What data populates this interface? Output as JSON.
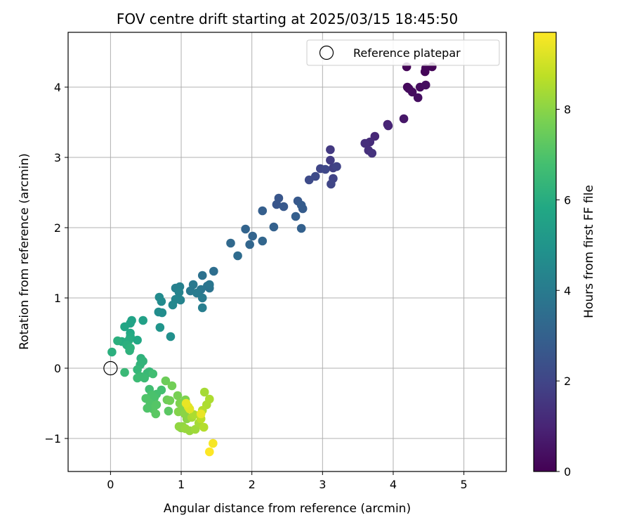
{
  "chart_data": {
    "type": "scatter",
    "title": "FOV centre drift starting at 2025/03/15 18:45:50",
    "xlabel": "Angular distance from reference (arcmin)",
    "ylabel": "Rotation from reference (arcmin)",
    "xlim": [
      -0.6,
      5.6
    ],
    "ylim": [
      -1.47,
      4.78
    ],
    "xticks": [
      0,
      1,
      2,
      3,
      4,
      5
    ],
    "xtick_labels": [
      "0",
      "1",
      "2",
      "3",
      "4",
      "5"
    ],
    "yticks": [
      -1,
      0,
      1,
      2,
      3,
      4
    ],
    "ytick_labels": [
      "−1",
      "0",
      "1",
      "2",
      "3",
      "4"
    ],
    "grid": true,
    "legend": {
      "placement": "top-right",
      "entries": [
        "Reference platepar"
      ]
    },
    "reference_point": {
      "x": 0,
      "y": 0
    },
    "colorbar": {
      "label": "Hours from first FF file",
      "colormap": "viridis",
      "range": [
        0,
        9.7
      ],
      "ticks": [
        0,
        2,
        4,
        6,
        8
      ],
      "tick_labels": [
        "0",
        "2",
        "4",
        "6",
        "8"
      ]
    },
    "points": [
      [
        4.19,
        4.29,
        0.1
      ],
      [
        4.45,
        4.22,
        0.1
      ],
      [
        4.46,
        4.27,
        0.15
      ],
      [
        4.55,
        4.29,
        0.1
      ],
      [
        4.2,
        4.0,
        0.2
      ],
      [
        4.22,
        3.98,
        0.25
      ],
      [
        4.27,
        3.93,
        0.3
      ],
      [
        4.35,
        3.85,
        0.35
      ],
      [
        4.38,
        4.0,
        0.3
      ],
      [
        4.46,
        4.03,
        0.35
      ],
      [
        4.15,
        3.55,
        0.6
      ],
      [
        3.92,
        3.47,
        0.9
      ],
      [
        3.93,
        3.45,
        1.0
      ],
      [
        3.74,
        3.3,
        1.1
      ],
      [
        3.67,
        3.22,
        1.2
      ],
      [
        3.6,
        3.2,
        1.3
      ],
      [
        3.65,
        3.1,
        1.3
      ],
      [
        3.7,
        3.06,
        1.4
      ],
      [
        3.11,
        3.11,
        1.6
      ],
      [
        3.11,
        2.96,
        1.7
      ],
      [
        3.15,
        2.85,
        1.8
      ],
      [
        3.2,
        2.87,
        1.9
      ],
      [
        3.15,
        2.7,
        1.9
      ],
      [
        3.12,
        2.62,
        2.0
      ],
      [
        2.97,
        2.84,
        2.0
      ],
      [
        3.04,
        2.83,
        2.1
      ],
      [
        2.9,
        2.73,
        2.2
      ],
      [
        2.81,
        2.68,
        2.2
      ],
      [
        2.38,
        2.42,
        2.6
      ],
      [
        2.35,
        2.33,
        2.6
      ],
      [
        2.45,
        2.3,
        2.7
      ],
      [
        2.65,
        2.38,
        2.7
      ],
      [
        2.7,
        2.32,
        2.8
      ],
      [
        2.72,
        2.27,
        2.8
      ],
      [
        2.62,
        2.16,
        2.9
      ],
      [
        2.15,
        2.24,
        2.9
      ],
      [
        2.31,
        2.01,
        3.0
      ],
      [
        2.7,
        1.99,
        3.0
      ],
      [
        1.91,
        1.98,
        3.1
      ],
      [
        2.01,
        1.88,
        3.1
      ],
      [
        1.97,
        1.76,
        3.2
      ],
      [
        2.15,
        1.81,
        3.2
      ],
      [
        1.7,
        1.78,
        3.3
      ],
      [
        1.8,
        1.6,
        3.4
      ],
      [
        1.46,
        1.38,
        3.5
      ],
      [
        1.3,
        1.32,
        3.6
      ],
      [
        1.4,
        1.14,
        3.7
      ],
      [
        1.37,
        1.17,
        3.7
      ],
      [
        1.4,
        1.19,
        3.8
      ],
      [
        1.28,
        1.12,
        3.8
      ],
      [
        1.17,
        1.19,
        3.9
      ],
      [
        1.13,
        1.1,
        3.9
      ],
      [
        1.22,
        1.07,
        4.0
      ],
      [
        1.3,
        1.0,
        4.0
      ],
      [
        1.3,
        0.86,
        4.1
      ],
      [
        0.98,
        1.16,
        4.2
      ],
      [
        0.92,
        1.14,
        4.2
      ],
      [
        0.97,
        1.08,
        4.3
      ],
      [
        0.99,
        0.97,
        4.3
      ],
      [
        0.92,
        0.98,
        4.4
      ],
      [
        0.88,
        0.9,
        4.5
      ],
      [
        0.69,
        1.01,
        4.6
      ],
      [
        0.72,
        0.95,
        4.6
      ],
      [
        0.68,
        0.8,
        4.7
      ],
      [
        0.73,
        0.79,
        4.7
      ],
      [
        0.85,
        0.45,
        4.8
      ],
      [
        0.7,
        0.58,
        5.0
      ],
      [
        0.46,
        0.68,
        5.5
      ],
      [
        0.3,
        0.68,
        5.6
      ],
      [
        0.28,
        0.64,
        5.6
      ],
      [
        0.2,
        0.59,
        5.7
      ],
      [
        0.28,
        0.5,
        5.8
      ],
      [
        0.38,
        0.4,
        5.8
      ],
      [
        0.28,
        0.45,
        5.9
      ],
      [
        0.26,
        0.4,
        6.0
      ],
      [
        0.16,
        0.38,
        6.0
      ],
      [
        0.1,
        0.39,
        6.1
      ],
      [
        0.23,
        0.33,
        6.1
      ],
      [
        0.28,
        0.29,
        6.2
      ],
      [
        0.27,
        0.25,
        6.2
      ],
      [
        0.02,
        0.23,
        6.1
      ],
      [
        0.43,
        0.14,
        6.2
      ],
      [
        0.46,
        0.1,
        6.3
      ],
      [
        0.42,
        0.05,
        6.3
      ],
      [
        0.38,
        -0.02,
        6.4
      ],
      [
        0.55,
        -0.05,
        6.4
      ],
      [
        0.2,
        -0.06,
        6.5
      ],
      [
        0.52,
        -0.07,
        6.5
      ],
      [
        0.43,
        -0.12,
        6.6
      ],
      [
        0.38,
        -0.14,
        6.6
      ],
      [
        0.48,
        -0.14,
        6.6
      ],
      [
        0.6,
        -0.08,
        6.7
      ],
      [
        0.55,
        -0.3,
        6.7
      ],
      [
        0.72,
        -0.31,
        6.8
      ],
      [
        0.65,
        -0.37,
        6.8
      ],
      [
        0.58,
        -0.38,
        6.9
      ],
      [
        0.62,
        -0.42,
        6.9
      ],
      [
        0.5,
        -0.43,
        7.0
      ],
      [
        0.56,
        -0.5,
        7.0
      ],
      [
        0.65,
        -0.52,
        7.1
      ],
      [
        0.6,
        -0.58,
        7.1
      ],
      [
        0.52,
        -0.57,
        7.0
      ],
      [
        0.64,
        -0.65,
        7.2
      ],
      [
        0.82,
        -0.61,
        7.2
      ],
      [
        0.78,
        -0.18,
        7.5
      ],
      [
        0.87,
        -0.25,
        7.6
      ],
      [
        0.8,
        -0.45,
        7.5
      ],
      [
        0.84,
        -0.46,
        7.6
      ],
      [
        0.95,
        -0.39,
        7.7
      ],
      [
        0.98,
        -0.5,
        7.8
      ],
      [
        1.06,
        -0.45,
        7.8
      ],
      [
        1.02,
        -0.56,
        7.9
      ],
      [
        0.96,
        -0.62,
        7.9
      ],
      [
        1.05,
        -0.65,
        8.0
      ],
      [
        1.08,
        -0.72,
        8.0
      ],
      [
        1.0,
        -0.85,
        8.0
      ],
      [
        0.97,
        -0.83,
        8.1
      ],
      [
        1.02,
        -0.83,
        8.1
      ],
      [
        1.06,
        -0.86,
        8.2
      ],
      [
        1.12,
        -0.89,
        8.2
      ],
      [
        1.2,
        -0.87,
        8.3
      ],
      [
        1.15,
        -0.7,
        8.4
      ],
      [
        1.25,
        -0.78,
        8.4
      ],
      [
        1.18,
        -0.66,
        8.5
      ],
      [
        1.33,
        -0.34,
        8.4
      ],
      [
        1.4,
        -0.44,
        8.5
      ],
      [
        1.36,
        -0.52,
        8.5
      ],
      [
        1.3,
        -0.6,
        8.6
      ],
      [
        1.32,
        -0.84,
        8.6
      ],
      [
        1.28,
        -0.72,
        8.7
      ],
      [
        1.1,
        -0.55,
        9.2
      ],
      [
        1.12,
        -0.58,
        9.3
      ],
      [
        1.07,
        -0.5,
        9.4
      ],
      [
        1.28,
        -0.65,
        9.4
      ],
      [
        1.45,
        -1.07,
        9.6
      ],
      [
        1.4,
        -1.19,
        9.7
      ]
    ]
  }
}
